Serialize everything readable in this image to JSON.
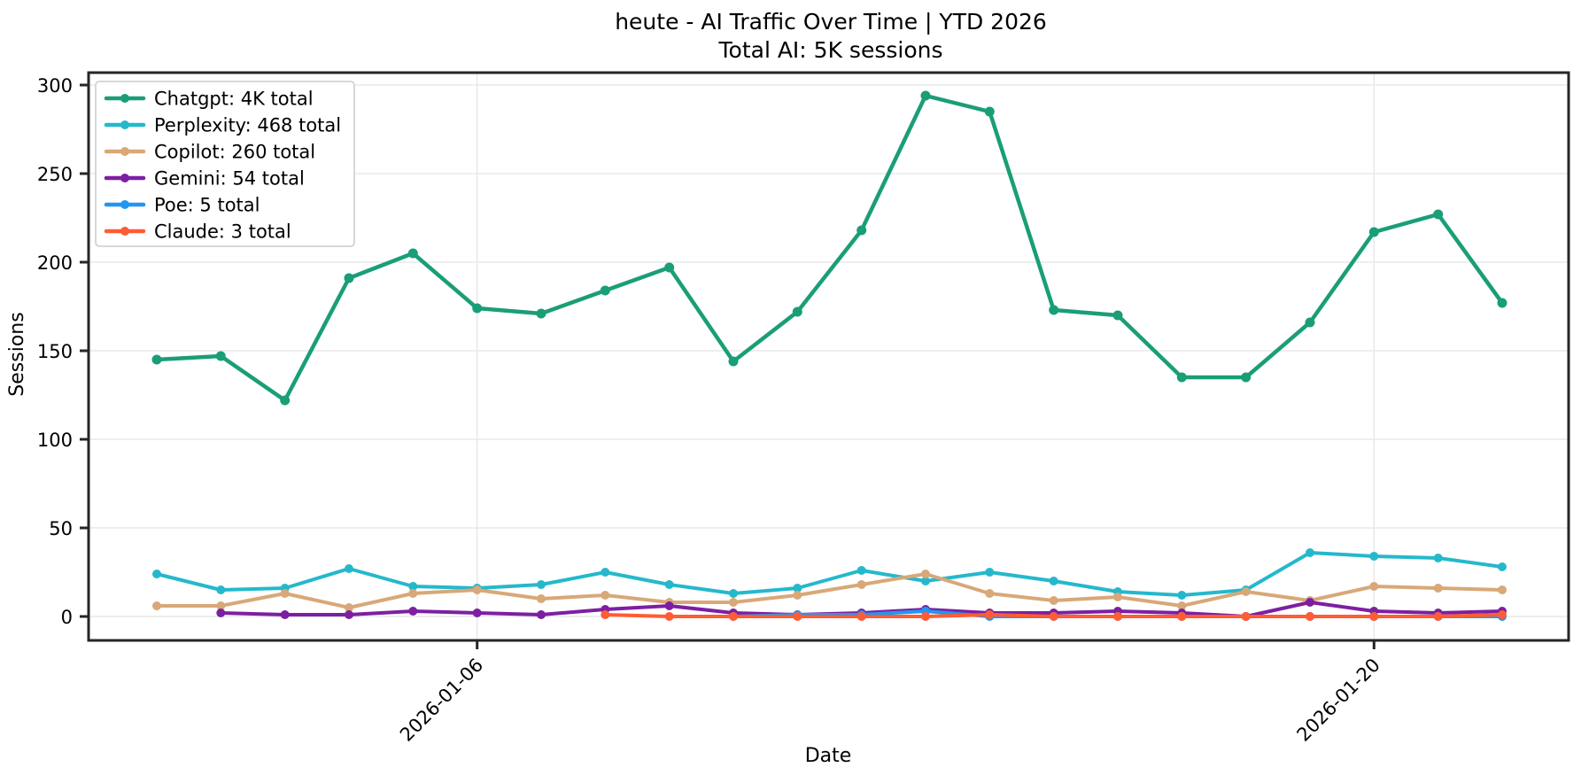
{
  "chart_data": {
    "type": "line",
    "title": "heute - AI Traffic Over Time | YTD 2026",
    "subtitle": "Total AI: 5K sessions",
    "xlabel": "Date",
    "ylabel": "Sessions",
    "grid": true,
    "legend_position": "upper left",
    "yticks": [
      0,
      50,
      100,
      150,
      200,
      250,
      300
    ],
    "ylim": [
      -14,
      311
    ],
    "xtick_labels": [
      "2026-01-06",
      "2026-01-20"
    ],
    "x": [
      "2026-01-01",
      "2026-01-02",
      "2026-01-03",
      "2026-01-04",
      "2026-01-05",
      "2026-01-06",
      "2026-01-07",
      "2026-01-08",
      "2026-01-09",
      "2026-01-10",
      "2026-01-11",
      "2026-01-12",
      "2026-01-13",
      "2026-01-14",
      "2026-01-15",
      "2026-01-16",
      "2026-01-17",
      "2026-01-18",
      "2026-01-19",
      "2026-01-20",
      "2026-01-21",
      "2026-01-22"
    ],
    "series": [
      {
        "name": "Chatgpt",
        "legend_label": "Chatgpt: 4K total",
        "total_label": "4K",
        "color": "#1a9e77",
        "values": [
          145,
          147,
          122,
          191,
          205,
          174,
          171,
          184,
          197,
          144,
          172,
          218,
          294,
          285,
          173,
          170,
          135,
          135,
          166,
          217,
          227,
          177
        ]
      },
      {
        "name": "Perplexity",
        "legend_label": "Perplexity: 468 total",
        "total_label": "468",
        "color": "#25b8cc",
        "values": [
          24,
          15,
          16,
          27,
          17,
          16,
          18,
          25,
          18,
          13,
          16,
          26,
          20,
          25,
          20,
          14,
          12,
          15,
          36,
          34,
          33,
          28
        ]
      },
      {
        "name": "Copilot",
        "legend_label": "Copilot: 260 total",
        "total_label": "260",
        "color": "#d8a878",
        "values": [
          6,
          6,
          13,
          5,
          13,
          15,
          10,
          12,
          8,
          8,
          12,
          18,
          24,
          13,
          9,
          11,
          6,
          14,
          9,
          17,
          16,
          15
        ]
      },
      {
        "name": "Gemini",
        "legend_label": "Gemini: 54 total",
        "total_label": "54",
        "color": "#7d1fa2",
        "values": [
          null,
          2,
          1,
          1,
          3,
          2,
          1,
          4,
          6,
          2,
          1,
          2,
          4,
          2,
          2,
          3,
          2,
          0,
          8,
          3,
          2,
          3
        ]
      },
      {
        "name": "Poe",
        "legend_label": "Poe: 5 total",
        "total_label": "5",
        "color": "#2196f3",
        "values": [
          null,
          null,
          null,
          null,
          null,
          null,
          null,
          null,
          null,
          0,
          1,
          1,
          3,
          0,
          0,
          0,
          0,
          0,
          0,
          0,
          0,
          0
        ]
      },
      {
        "name": "Claude",
        "legend_label": "Claude: 3 total",
        "total_label": "3",
        "color": "#ff5c33",
        "values": [
          null,
          null,
          null,
          null,
          null,
          null,
          null,
          1,
          0,
          0,
          0,
          0,
          0,
          1,
          0,
          0,
          0,
          0,
          0,
          0,
          0,
          1
        ]
      }
    ]
  }
}
